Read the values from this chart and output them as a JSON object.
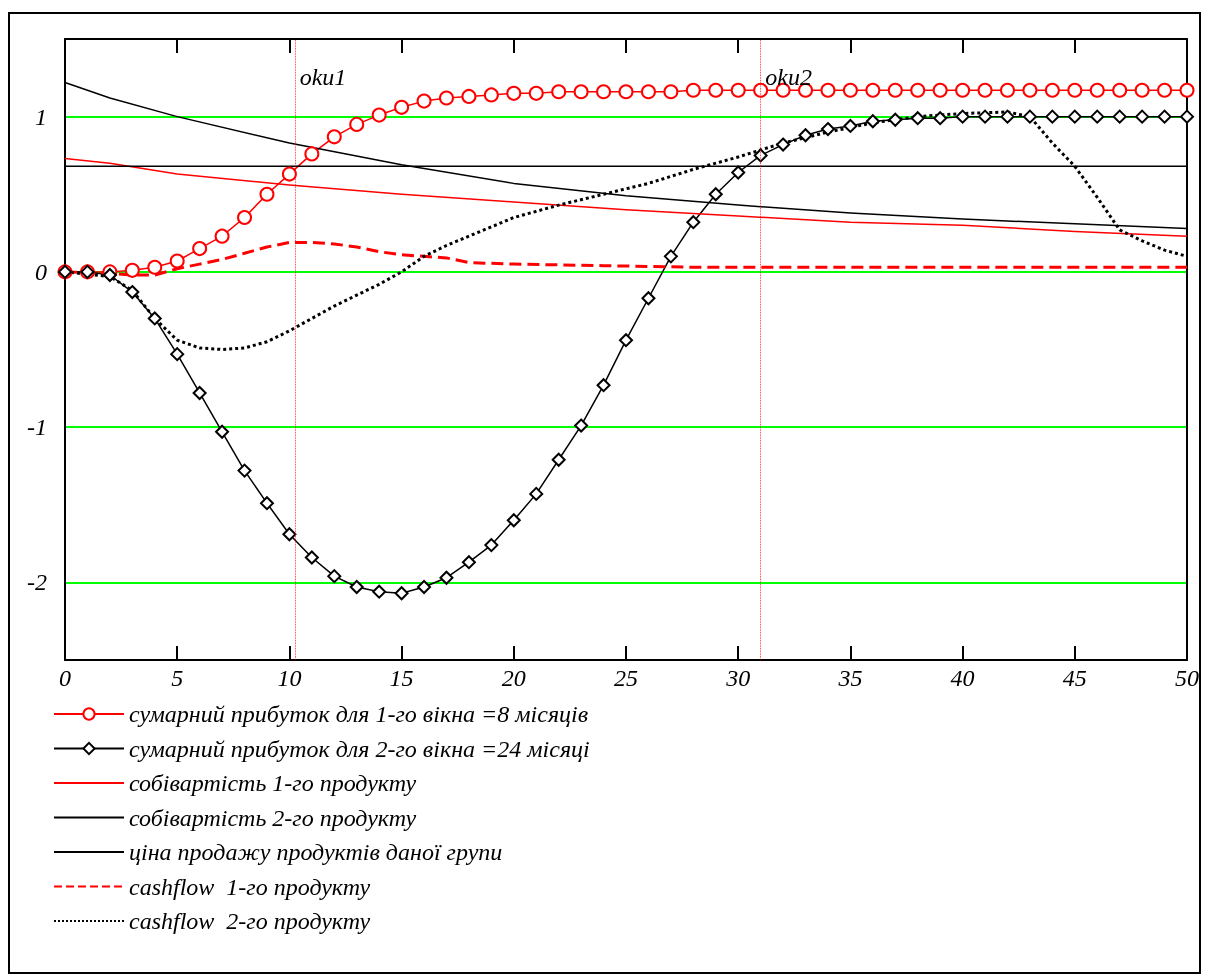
{
  "chart_data": {
    "type": "line",
    "xlim": [
      0,
      50
    ],
    "xticks": [
      0,
      5,
      10,
      15,
      20,
      25,
      30,
      35,
      40,
      45,
      50
    ],
    "ylim": [
      -2.5,
      1.5
    ],
    "yticks": [
      -2,
      -1,
      0,
      1
    ],
    "grid": "y",
    "legend": "bottom",
    "ref_lines": [
      {
        "axis": "x",
        "value": 10.25,
        "label": "oku1",
        "color": "#ff0000",
        "line_style": "dotted"
      },
      {
        "axis": "x",
        "value": 31,
        "label": "oku2",
        "color": "#ff0000",
        "line_style": "dotted"
      }
    ],
    "series": [
      {
        "name": "сумарний прибуток для 1-го вікна =8 місяців",
        "color": "#ff0000",
        "marker": "circle",
        "line_style": "solid",
        "x": [
          0,
          1,
          2,
          3,
          4,
          5,
          6,
          7,
          8,
          9,
          10,
          11,
          12,
          13,
          14,
          15,
          16,
          17,
          18,
          19,
          20,
          21,
          22,
          23,
          24,
          25,
          26,
          27,
          28,
          29,
          30,
          31,
          32,
          33,
          34,
          35,
          36,
          37,
          38,
          39,
          40,
          41,
          42,
          43,
          44,
          45,
          46,
          47,
          48,
          49,
          50
        ],
        "values": [
          0,
          0,
          0,
          0.01,
          0.03,
          0.07,
          0.15,
          0.23,
          0.35,
          0.5,
          0.63,
          0.76,
          0.87,
          0.95,
          1.01,
          1.06,
          1.1,
          1.12,
          1.13,
          1.14,
          1.15,
          1.15,
          1.16,
          1.16,
          1.16,
          1.16,
          1.16,
          1.16,
          1.17,
          1.17,
          1.17,
          1.17,
          1.17,
          1.17,
          1.17,
          1.17,
          1.17,
          1.17,
          1.17,
          1.17,
          1.17,
          1.17,
          1.17,
          1.17,
          1.17,
          1.17,
          1.17,
          1.17,
          1.17,
          1.17,
          1.17
        ]
      },
      {
        "name": "сумарний прибуток для 2-го вікна =24 місяці",
        "color": "#000000",
        "marker": "diamond",
        "line_style": "solid",
        "x": [
          0,
          1,
          2,
          3,
          4,
          5,
          6,
          7,
          8,
          9,
          10,
          11,
          12,
          13,
          14,
          15,
          16,
          17,
          18,
          19,
          20,
          21,
          22,
          23,
          24,
          25,
          26,
          27,
          28,
          29,
          30,
          31,
          32,
          33,
          34,
          35,
          36,
          37,
          38,
          39,
          40,
          41,
          42,
          43,
          44,
          45,
          46,
          47,
          48,
          49,
          50
        ],
        "values": [
          0,
          0,
          -0.02,
          -0.13,
          -0.3,
          -0.53,
          -0.78,
          -1.03,
          -1.28,
          -1.49,
          -1.69,
          -1.84,
          -1.96,
          -2.03,
          -2.06,
          -2.07,
          -2.03,
          -1.97,
          -1.87,
          -1.76,
          -1.6,
          -1.43,
          -1.21,
          -0.99,
          -0.73,
          -0.44,
          -0.17,
          0.1,
          0.32,
          0.5,
          0.64,
          0.75,
          0.82,
          0.88,
          0.92,
          0.94,
          0.97,
          0.98,
          0.99,
          0.99,
          1,
          1,
          1,
          1,
          1,
          1,
          1,
          1,
          1,
          1,
          1
        ]
      },
      {
        "name": "собівартість 1-го продукту",
        "color": "#ff0000",
        "marker": "none",
        "line_style": "solid",
        "x": [
          0,
          2,
          5,
          10,
          15,
          20,
          25,
          30,
          35,
          40,
          45,
          50
        ],
        "values": [
          0.73,
          0.7,
          0.63,
          0.56,
          0.5,
          0.45,
          0.4,
          0.36,
          0.32,
          0.3,
          0.26,
          0.23
        ]
      },
      {
        "name": "собівартість 2-го продукту",
        "color": "#000000",
        "marker": "none",
        "line_style": "solid",
        "x": [
          0,
          2,
          5,
          10,
          15,
          20,
          25,
          30,
          35,
          40,
          45,
          50
        ],
        "values": [
          1.22,
          1.12,
          1,
          0.83,
          0.69,
          0.57,
          0.49,
          0.43,
          0.38,
          0.34,
          0.31,
          0.28
        ]
      },
      {
        "name": "ціна продажу продуктів даної групи",
        "color": "#000000",
        "marker": "none",
        "line_style": "solid",
        "x": [
          0,
          50
        ],
        "values": [
          0.68,
          0.68
        ]
      },
      {
        "name": "cashflow  1-го продукту",
        "color": "#ff0000",
        "marker": "none",
        "line_style": "dashed",
        "x": [
          0,
          2,
          3,
          4,
          5,
          6,
          7,
          8,
          9,
          10,
          11,
          12,
          13,
          14,
          15,
          16,
          17,
          18,
          20,
          24,
          28,
          50
        ],
        "values": [
          0,
          -0.01,
          -0.02,
          -0.02,
          0.02,
          0.05,
          0.08,
          0.12,
          0.16,
          0.19,
          0.19,
          0.18,
          0.16,
          0.13,
          0.11,
          0.1,
          0.09,
          0.06,
          0.05,
          0.04,
          0.03,
          0.03
        ]
      },
      {
        "name": "cashflow  2-го продукту",
        "color": "#000000",
        "marker": "none",
        "line_style": "dotted",
        "x": [
          0,
          2,
          3,
          4,
          5,
          6,
          7,
          8,
          9,
          10,
          11,
          12,
          13,
          14,
          15,
          16,
          17,
          18,
          19,
          20,
          22,
          24,
          26,
          28,
          30,
          32,
          34,
          36,
          38,
          40,
          42,
          43,
          44,
          45,
          46,
          47,
          48,
          49,
          50
        ],
        "values": [
          0,
          -0.03,
          -0.12,
          -0.3,
          -0.44,
          -0.49,
          -0.5,
          -0.49,
          -0.45,
          -0.38,
          -0.3,
          -0.22,
          -0.15,
          -0.08,
          0,
          0.1,
          0.17,
          0.23,
          0.29,
          0.35,
          0.43,
          0.5,
          0.57,
          0.66,
          0.74,
          0.83,
          0.9,
          0.96,
          1,
          1.02,
          1.03,
          1,
          0.83,
          0.68,
          0.48,
          0.27,
          0.2,
          0.14,
          0.1
        ]
      }
    ]
  }
}
